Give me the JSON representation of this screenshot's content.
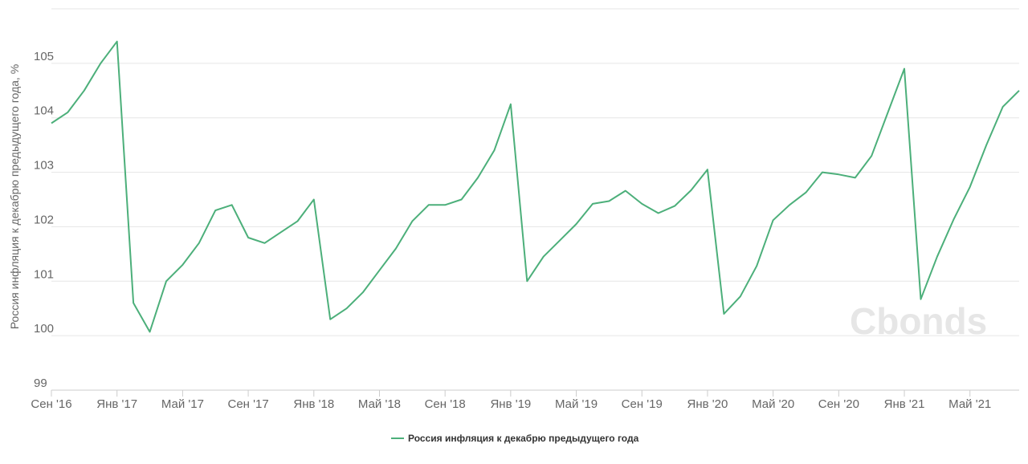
{
  "watermark": "Cbonds",
  "chart_data": {
    "type": "line",
    "ylabel": "Россия инфляция к декабрю предыдущего года, %",
    "ylim": [
      99,
      106
    ],
    "yticks": [
      99,
      100,
      101,
      102,
      103,
      104,
      105
    ],
    "x_range": [
      "2016-09",
      "2021-08"
    ],
    "x_ticks": [
      {
        "month": "2016-09",
        "label": "Сен '16"
      },
      {
        "month": "2017-01",
        "label": "Янв '17"
      },
      {
        "month": "2017-05",
        "label": "Май '17"
      },
      {
        "month": "2017-09",
        "label": "Сен '17"
      },
      {
        "month": "2018-01",
        "label": "Янв '18"
      },
      {
        "month": "2018-05",
        "label": "Май '18"
      },
      {
        "month": "2018-09",
        "label": "Сен '18"
      },
      {
        "month": "2019-01",
        "label": "Янв '19"
      },
      {
        "month": "2019-05",
        "label": "Май '19"
      },
      {
        "month": "2019-09",
        "label": "Сен '19"
      },
      {
        "month": "2020-01",
        "label": "Янв '20"
      },
      {
        "month": "2020-05",
        "label": "Май '20"
      },
      {
        "month": "2020-09",
        "label": "Сен '20"
      },
      {
        "month": "2021-01",
        "label": "Янв '21"
      },
      {
        "month": "2021-05",
        "label": "Май '21"
      }
    ],
    "grid": true,
    "legend_position": "bottom-center",
    "series": [
      {
        "name": "Россия инфляция к декабрю предыдущего года",
        "color": "#4caf7a",
        "points": [
          [
            "2016-09",
            103.9
          ],
          [
            "2016-10",
            104.1
          ],
          [
            "2016-11",
            104.5
          ],
          [
            "2016-12",
            105.0
          ],
          [
            "2017-01",
            105.4
          ],
          [
            "2017-02",
            100.6
          ],
          [
            "2017-03",
            100.07
          ],
          [
            "2017-04",
            101.0
          ],
          [
            "2017-05",
            101.3
          ],
          [
            "2017-06",
            101.7
          ],
          [
            "2017-07",
            102.3
          ],
          [
            "2017-08",
            102.4
          ],
          [
            "2017-09",
            101.8
          ],
          [
            "2017-10",
            101.7
          ],
          [
            "2017-11",
            101.9
          ],
          [
            "2017-12",
            102.1
          ],
          [
            "2018-01",
            102.5
          ],
          [
            "2018-02",
            100.3
          ],
          [
            "2018-03",
            100.5
          ],
          [
            "2018-04",
            100.8
          ],
          [
            "2018-05",
            101.2
          ],
          [
            "2018-06",
            101.6
          ],
          [
            "2018-07",
            102.1
          ],
          [
            "2018-08",
            102.4
          ],
          [
            "2018-09",
            102.4
          ],
          [
            "2018-10",
            102.5
          ],
          [
            "2018-11",
            102.9
          ],
          [
            "2018-12",
            103.4
          ],
          [
            "2019-01",
            104.25
          ],
          [
            "2019-02",
            101.0
          ],
          [
            "2019-03",
            101.45
          ],
          [
            "2019-04",
            101.75
          ],
          [
            "2019-05",
            102.05
          ],
          [
            "2019-06",
            102.42
          ],
          [
            "2019-07",
            102.47
          ],
          [
            "2019-08",
            102.66
          ],
          [
            "2019-09",
            102.42
          ],
          [
            "2019-10",
            102.25
          ],
          [
            "2019-11",
            102.38
          ],
          [
            "2019-12",
            102.67
          ],
          [
            "2020-01",
            103.05
          ],
          [
            "2020-02",
            100.4
          ],
          [
            "2020-03",
            100.72
          ],
          [
            "2020-04",
            101.28
          ],
          [
            "2020-05",
            102.12
          ],
          [
            "2020-06",
            102.4
          ],
          [
            "2020-07",
            102.63
          ],
          [
            "2020-08",
            103.0
          ],
          [
            "2020-09",
            102.96
          ],
          [
            "2020-10",
            102.9
          ],
          [
            "2020-11",
            103.3
          ],
          [
            "2020-12",
            104.1
          ],
          [
            "2021-01",
            104.9
          ],
          [
            "2021-02",
            100.67
          ],
          [
            "2021-03",
            101.45
          ],
          [
            "2021-04",
            102.13
          ],
          [
            "2021-05",
            102.73
          ],
          [
            "2021-06",
            103.5
          ],
          [
            "2021-07",
            104.2
          ],
          [
            "2021-08",
            104.5
          ]
        ]
      }
    ]
  }
}
